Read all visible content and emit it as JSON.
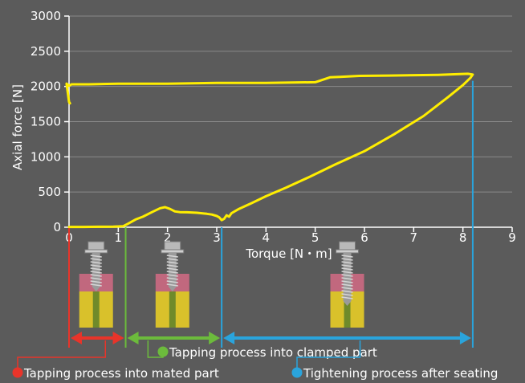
{
  "colors": {
    "background": "#5b5b5b",
    "gridline": "#8a8a8a",
    "axis": "#ffffff",
    "curve": "#ffee00",
    "tapping_mated": "#e8342a",
    "tapping_clamped": "#6cbb3c",
    "tightening": "#2aa4dc",
    "clamped_part": "#c1687e",
    "mated_part": "#d9c12b"
  },
  "chart_data": {
    "type": "line",
    "xlabel": "Torque [N・m]",
    "ylabel": "Axial force [N]",
    "xlim": [
      0,
      9
    ],
    "ylim": [
      0,
      3000
    ],
    "x_ticks": [
      "0",
      "1",
      "2",
      "3",
      "4",
      "5",
      "6",
      "7",
      "8",
      "9"
    ],
    "y_ticks": [
      "0",
      "500",
      "1000",
      "1500",
      "2000",
      "2500",
      "3000"
    ],
    "grid": true,
    "series": [
      {
        "x": [
          0,
          0.3,
          0.6,
          0.9,
          1.1,
          1.2,
          1.35,
          1.5,
          1.7,
          1.85,
          1.95,
          2.05,
          2.15,
          2.25,
          2.4,
          2.6,
          2.8,
          2.9,
          3.0,
          3.05,
          3.1,
          3.15,
          3.2,
          3.25,
          3.3,
          3.45,
          3.7,
          4.0,
          4.4,
          4.9,
          5.4,
          6.0,
          6.6,
          7.2,
          7.7,
          8.0,
          8.15,
          8.2,
          8.1,
          7.5,
          6.5,
          5.9,
          5.5,
          5.3,
          5.0,
          4.0,
          3.0,
          2.0,
          1.0,
          0.4,
          0.05,
          0.0,
          -0.05,
          0.0,
          0.02
        ],
        "y": [
          5,
          5,
          7,
          8,
          15,
          50,
          110,
          150,
          220,
          270,
          285,
          260,
          225,
          215,
          212,
          205,
          190,
          180,
          160,
          140,
          100,
          120,
          170,
          150,
          200,
          260,
          340,
          440,
          560,
          720,
          890,
          1080,
          1320,
          1580,
          1850,
          2020,
          2120,
          2170,
          2180,
          2165,
          2155,
          2150,
          2135,
          2130,
          2060,
          2050,
          2050,
          2040,
          2040,
          2030,
          2030,
          2010,
          2040,
          1780,
          1760
        ]
      }
    ],
    "phases": [
      {
        "label": "Tapping process into mated part",
        "x_range": [
          0,
          1.15
        ]
      },
      {
        "label": "Tapping process into clamped part",
        "x_range": [
          1.15,
          3.1
        ]
      },
      {
        "label": "Tightening process after seating",
        "x_range": [
          3.1,
          8.2
        ]
      }
    ]
  }
}
